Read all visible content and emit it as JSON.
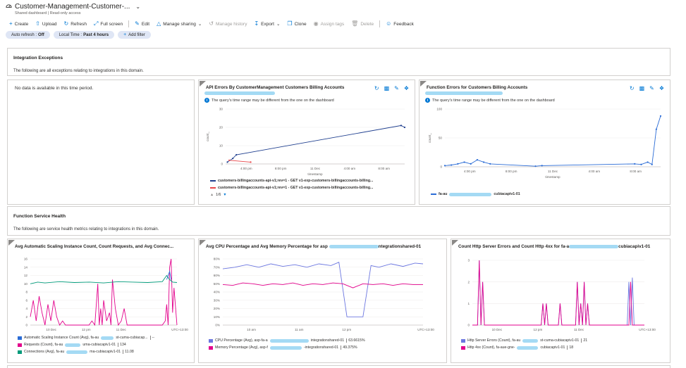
{
  "header": {
    "title": "Customer-Management-Customer-...",
    "subtitle": "Shared dashboard | Read-only access"
  },
  "toolbar": {
    "create": "Create",
    "upload": "Upload",
    "refresh": "Refresh",
    "fullscreen": "Full screen",
    "edit": "Edit",
    "manage_sharing": "Manage sharing",
    "manage_history": "Manage history",
    "export": "Export",
    "clone": "Clone",
    "assign_tags": "Assign tags",
    "delete": "Delete",
    "feedback": "Feedback"
  },
  "filters": {
    "auto_refresh_label": "Auto refresh :",
    "auto_refresh_value": "Off",
    "time_label": "Local Time :",
    "time_value": "Past 4 hours",
    "add_filter": "Add filter"
  },
  "sections": {
    "integration": {
      "title": "Integration Exceptions",
      "text": "The following are all exceptions relating to integrations in this domain."
    },
    "no_data": "No data is available in this time period.",
    "function_health": {
      "title": "Function Service Health",
      "text": "The following are service health metrics relating to integrations in this domain."
    }
  },
  "tiles": {
    "api_errors": {
      "title": "API Errors By CustomerManagement Customers Billing Accounts",
      "info": "The query's time range may be different from the one on the dashboard",
      "ylabel": "count_",
      "xlabel": "timestamp",
      "legend": [
        "customers-billingaccounts-api-v1;rev=1 - GET v1-exp-customers-billingaccounts-billing...",
        "customers-billingaccounts-api-v1;rev=1 - GET v1-exp-customers-billingaccounts-billing..."
      ],
      "pager": "1/6"
    },
    "function_errors": {
      "title": "Function Errors for Customers Billing Accounts",
      "info": "The query's time range may be different from the one on the dashboard",
      "ylabel": "count_",
      "xlabel": "timestamp",
      "legend": [
        "fa-au",
        "cubiacapiv1-01"
      ]
    },
    "scaling": {
      "title": "Avg Automatic Scaling Instance Count, Count Requests, and Avg Connec...",
      "legend": [
        {
          "label": "Automatic Scaling Instance Count (Avg), fa-au",
          "label2": "st-cuma-cubiacap...",
          "value": "--"
        },
        {
          "label": "Requests (Count), fa-au",
          "label2": "uma-cubiacapiv1-01",
          "value": "134"
        },
        {
          "label": "Connections (Avg), fa-au",
          "label2": "ma-cubiacapiv1-01",
          "value": "11.08"
        }
      ]
    },
    "cpu": {
      "title": "Avg CPU Percentage and Avg Memory Percentage for asp",
      "title2": "ntegrationshared-01",
      "legend": [
        {
          "label": "CPU Percentage (Avg), asp-fa-a",
          "label2": "integrationshared-01",
          "value": "63.6615%"
        },
        {
          "label": "Memory Percentage (Avg), asp-f",
          "label2": "-integrationshared-01",
          "value": "49.375%"
        }
      ]
    },
    "http": {
      "title": "Count Http Server Errors and Count Http 4xx for fa-a",
      "title2": "cubiacapiv1-01",
      "legend": [
        {
          "label": "Http Server Errors (Count), fa-au",
          "label2": "st-cuma-cubiacapiv1-01",
          "value": "21"
        },
        {
          "label": "Http 4xx (Count), fa-aue-gne-",
          "label2": "cubiacapiv1-01",
          "value": "18"
        }
      ]
    }
  },
  "colors": {
    "accent": "#0078d4",
    "series_blue": "#2b6cd6",
    "series_pink": "#e3008c",
    "series_teal": "#009a7a",
    "series_lavender": "#6b76e0",
    "series_red": "#e8474a",
    "series_navy": "#1f3f8f"
  },
  "chart_data": [
    {
      "type": "line",
      "title": "API Errors By CustomerManagement Customers Billing Accounts",
      "xlabel": "timestamp",
      "ylabel": "count_",
      "ylim": [
        0,
        30
      ],
      "yticks": [
        0,
        10,
        20,
        30
      ],
      "xticks": [
        "4:00 pm",
        "8:00 pm",
        "11 Dec",
        "4:00 am",
        "8:00 am"
      ],
      "series": [
        {
          "name": "customers-billingaccounts-api-v1;rev=1 - GET v1-exp-customers-billingaccounts-billing...",
          "x": [
            1,
            4,
            6,
            98,
            100
          ],
          "y": [
            1,
            3,
            5,
            21,
            20
          ]
        },
        {
          "name": "customers-billingaccounts-api-v1;rev=1 - GET v1-exp-customers-billingaccounts-billing...",
          "x": [
            2,
            14
          ],
          "y": [
            2,
            1
          ]
        }
      ]
    },
    {
      "type": "line",
      "title": "Function Errors for Customers Billing Accounts",
      "xlabel": "timestamp",
      "ylabel": "count_",
      "ylim": [
        0,
        100
      ],
      "yticks": [
        0,
        50,
        100
      ],
      "xticks": [
        "4:00 pm",
        "8:00 pm",
        "11 Dec",
        "4:00 am",
        "8:00 am"
      ],
      "series": [
        {
          "name": "fa-au cubiacapiv1-01",
          "x": [
            0,
            3,
            6,
            9,
            12,
            15,
            18,
            21,
            42,
            45,
            88,
            91,
            94,
            96,
            98,
            100
          ],
          "y": [
            2,
            3,
            5,
            8,
            5,
            12,
            8,
            5,
            1,
            2,
            5,
            4,
            8,
            4,
            65,
            88
          ]
        }
      ]
    },
    {
      "type": "line",
      "title": "Avg Automatic Scaling Instance Count, Count Requests, and Avg Connec...",
      "ylim": [
        0,
        16
      ],
      "yticks": [
        0,
        2,
        4,
        6,
        8,
        10,
        12,
        14,
        16
      ],
      "xticks": [
        "10 Dec",
        "12 pm",
        "11 Dec",
        "UTC+13:00"
      ],
      "series": [
        {
          "name": "Requests (Count)",
          "x": [
            0,
            2,
            4,
            6,
            8,
            10,
            12,
            14,
            16,
            18,
            20,
            22,
            24,
            40,
            42,
            44,
            46,
            47,
            48,
            49,
            50,
            52,
            54,
            55,
            56,
            58,
            60,
            62,
            64,
            66,
            90,
            92,
            93,
            94,
            95,
            96,
            97,
            98,
            100
          ],
          "y": [
            2,
            6,
            1,
            7,
            3,
            0,
            5,
            1,
            6,
            2,
            0,
            1,
            0,
            0,
            1,
            0,
            10,
            0,
            4,
            0,
            6,
            1,
            3,
            0,
            11,
            4,
            0,
            1,
            4,
            0,
            0,
            1,
            5,
            0,
            14,
            16,
            3,
            9,
            0
          ]
        },
        {
          "name": "Connections (Avg)",
          "x": [
            0,
            5,
            10,
            20,
            30,
            40,
            50,
            60,
            70,
            80,
            90,
            93,
            95,
            97,
            100
          ],
          "y": [
            10,
            10.4,
            10.2,
            10.5,
            10.3,
            10.4,
            10.2,
            10.5,
            10.4,
            10.3,
            10.5,
            12,
            11,
            10.4,
            10.3
          ]
        },
        {
          "name": "Automatic Scaling Instance Count (Avg)",
          "x": [
            93,
            95,
            96
          ],
          "y": [
            11,
            13,
            11
          ]
        }
      ]
    },
    {
      "type": "line",
      "title": "Avg CPU Percentage and Avg Memory Percentage for asp",
      "ylim": [
        0,
        80
      ],
      "yticks": [
        0,
        10,
        20,
        30,
        40,
        50,
        60,
        70,
        80
      ],
      "yticklabels": [
        "0%",
        "10%",
        "20%",
        "30%",
        "40%",
        "50%",
        "60%",
        "70%",
        "80%"
      ],
      "xticks": [
        "10 am",
        "11 am",
        "12 pm",
        "UTC+13:00"
      ],
      "series": [
        {
          "name": "CPU Percentage (Avg)",
          "x": [
            0,
            6,
            12,
            18,
            24,
            30,
            36,
            42,
            48,
            54,
            58,
            62,
            66,
            70,
            74,
            78,
            84,
            90,
            96,
            100
          ],
          "y": [
            68,
            70,
            73,
            70,
            74,
            71,
            73,
            70,
            74,
            72,
            76,
            10,
            10,
            10,
            72,
            70,
            74,
            71,
            75,
            74
          ]
        },
        {
          "name": "Memory Percentage (Avg)",
          "x": [
            0,
            5,
            10,
            15,
            20,
            25,
            30,
            35,
            40,
            45,
            50,
            55,
            60,
            65,
            70,
            75,
            80,
            85,
            90,
            95,
            100
          ],
          "y": [
            49,
            48,
            51,
            50,
            48,
            50,
            49,
            51,
            48,
            50,
            49,
            51,
            50,
            45,
            50,
            49,
            50,
            48,
            50,
            49,
            49
          ]
        }
      ]
    },
    {
      "type": "line",
      "title": "Count Http Server Errors and Count Http 4xx for fa-a",
      "ylim": [
        0,
        3
      ],
      "yticks": [
        0,
        1,
        2,
        3
      ],
      "xticks": [
        "10 Dec",
        "12 pm",
        "11 Dec",
        "UTC+13:00"
      ],
      "series": [
        {
          "name": "Http Server Errors (Count)",
          "x": [
            0,
            3,
            4,
            5,
            6,
            7,
            8,
            40,
            41,
            42,
            43,
            44,
            50,
            51,
            52,
            60,
            61,
            62,
            63,
            64,
            65,
            66,
            67,
            68,
            90,
            91,
            92,
            93,
            94,
            100
          ],
          "y": [
            0,
            0,
            3,
            0,
            2,
            0,
            0,
            0,
            1,
            0,
            1,
            0,
            0,
            1,
            0,
            0,
            2,
            0,
            1,
            0,
            2,
            0,
            1,
            0,
            0,
            2,
            0,
            2.2,
            0,
            0
          ]
        },
        {
          "name": "Http 4xx (Count)",
          "x": [
            0,
            3,
            4,
            5,
            6,
            7,
            8,
            40,
            41,
            42,
            43,
            44,
            50,
            51,
            52,
            60,
            61,
            62,
            63,
            64,
            65,
            66,
            67,
            68,
            90,
            91,
            92,
            93,
            94,
            100
          ],
          "y": [
            0,
            0,
            3,
            0,
            2,
            0,
            0,
            0,
            1,
            0,
            1,
            0,
            0,
            1,
            0,
            0,
            2,
            0,
            1,
            0,
            2,
            0,
            1,
            0,
            0,
            0,
            2,
            0,
            0,
            0
          ]
        }
      ]
    }
  ]
}
